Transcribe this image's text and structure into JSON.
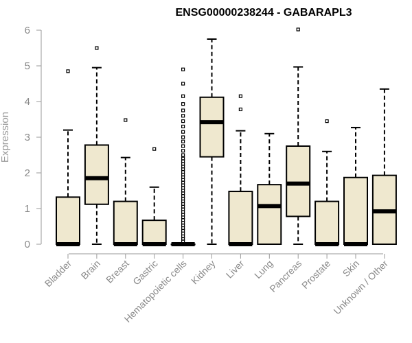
{
  "chart_data": {
    "type": "boxplot",
    "title": "ENSG00000238244 - GABARAPL3",
    "xlabel": "",
    "ylabel": "Expression",
    "ylim": [
      0,
      6
    ],
    "yticks": [
      0,
      1,
      2,
      3,
      4,
      5,
      6
    ],
    "grid": false,
    "box_fill": "#efe8cf",
    "categories": [
      "Bladder",
      "Brain",
      "Breast",
      "Gastric",
      "Hematopoietic cells",
      "Kidney",
      "Liver",
      "Lung",
      "Pancreas",
      "Prostate",
      "Skin",
      "Unknown / Other"
    ],
    "boxes": [
      {
        "name": "Bladder",
        "q1": 0,
        "median": 0,
        "q3": 1.32,
        "whisker_low": 0,
        "whisker_high": 3.2,
        "outliers": [
          4.85
        ]
      },
      {
        "name": "Brain",
        "q1": 1.12,
        "median": 1.85,
        "q3": 2.78,
        "whisker_low": 0,
        "whisker_high": 4.95,
        "outliers": [
          5.5
        ]
      },
      {
        "name": "Breast",
        "q1": 0,
        "median": 0,
        "q3": 1.2,
        "whisker_low": 0,
        "whisker_high": 2.43,
        "outliers": [
          3.48
        ]
      },
      {
        "name": "Gastric",
        "q1": 0,
        "median": 0,
        "q3": 0.67,
        "whisker_low": 0,
        "whisker_high": 1.6,
        "outliers": [
          2.67
        ]
      },
      {
        "name": "Hematopoietic cells",
        "q1": 0,
        "median": 0,
        "q3": 0,
        "whisker_low": 0,
        "whisker_high": 0,
        "outliers": [
          0.08,
          0.15,
          0.22,
          0.3,
          0.38,
          0.45,
          0.53,
          0.6,
          0.68,
          0.75,
          0.83,
          0.9,
          0.98,
          1.05,
          1.13,
          1.2,
          1.28,
          1.35,
          1.43,
          1.5,
          1.58,
          1.65,
          1.73,
          1.8,
          1.88,
          1.95,
          2.03,
          2.1,
          2.18,
          2.25,
          2.33,
          2.4,
          2.5,
          2.62,
          2.75,
          2.88,
          3.0,
          3.15,
          3.3,
          3.45,
          3.6,
          3.75,
          3.93,
          4.15,
          4.5,
          4.9
        ]
      },
      {
        "name": "Kidney",
        "q1": 2.45,
        "median": 3.42,
        "q3": 4.12,
        "whisker_low": 0,
        "whisker_high": 5.75,
        "outliers": []
      },
      {
        "name": "Liver",
        "q1": 0,
        "median": 0,
        "q3": 1.48,
        "whisker_low": 0,
        "whisker_high": 3.18,
        "outliers": [
          3.78,
          4.15
        ]
      },
      {
        "name": "Lung",
        "q1": 0,
        "median": 1.07,
        "q3": 1.67,
        "whisker_low": 0,
        "whisker_high": 3.1,
        "outliers": []
      },
      {
        "name": "Pancreas",
        "q1": 0.78,
        "median": 1.7,
        "q3": 2.75,
        "whisker_low": 0,
        "whisker_high": 4.97,
        "outliers": [
          6.02
        ]
      },
      {
        "name": "Prostate",
        "q1": 0,
        "median": 0,
        "q3": 1.2,
        "whisker_low": 0,
        "whisker_high": 2.6,
        "outliers": [
          3.45
        ]
      },
      {
        "name": "Skin",
        "q1": 0,
        "median": 0,
        "q3": 1.87,
        "whisker_low": 0,
        "whisker_high": 3.27,
        "outliers": []
      },
      {
        "name": "Unknown / Other",
        "q1": 0,
        "median": 0.92,
        "q3": 1.93,
        "whisker_low": 0,
        "whisker_high": 4.35,
        "outliers": []
      }
    ]
  }
}
